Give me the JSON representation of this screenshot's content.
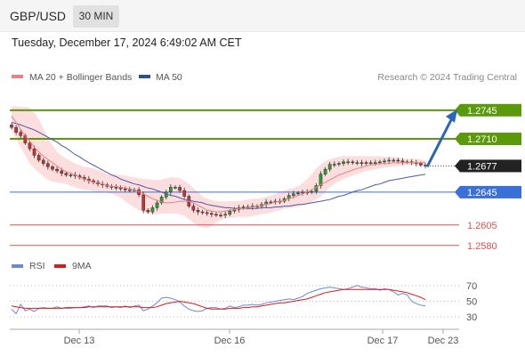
{
  "header": {
    "pair": "GBP/USD",
    "timeframe": "30 MIN"
  },
  "timestamp": "Tuesday, December 17, 2024 6:49:02 AM CET",
  "legend": [
    {
      "label": "MA 20 + Bollinger Bands",
      "color": "#f08080"
    },
    {
      "label": "MA 50",
      "color": "#2f4f8f"
    }
  ],
  "credit": "Research © 2024 Trading Central",
  "colors": {
    "resistance": "#5a9a0a",
    "pivot": "#3a70d8",
    "support": "#e05050",
    "current": "#222222",
    "candle_up": "#2f9e2f",
    "candle_down": "#c83232",
    "band_fill": "#fbd3d3",
    "ma20": "#f08080",
    "ma50": "#4a5aa8",
    "rsi": "#6a88dd",
    "rsi_ma": "#e01818",
    "arrow": "#2a66b8"
  },
  "chart_data": [
    {
      "type": "candlestick",
      "ylim": [
        1.257,
        1.276
      ],
      "x_ticks": [
        "Dec 13",
        "Dec 16",
        "Dec 17",
        "Dec 23"
      ],
      "levels": [
        {
          "value": 1.2745,
          "label": "1.2745",
          "kind": "resistance"
        },
        {
          "value": 1.271,
          "label": "1.2710",
          "kind": "resistance"
        },
        {
          "value": 1.2677,
          "label": "1.2677",
          "kind": "current"
        },
        {
          "value": 1.2645,
          "label": "1.2645",
          "kind": "pivot"
        },
        {
          "value": 1.2605,
          "label": "1.2605",
          "kind": "support"
        },
        {
          "value": 1.258,
          "label": "1.2580",
          "kind": "support"
        }
      ],
      "forecast_target": 1.2745,
      "price": [
        1.2724,
        1.2718,
        1.2714,
        1.2705,
        1.2698,
        1.269,
        1.2684,
        1.268,
        1.2676,
        1.2673,
        1.2671,
        1.2668,
        1.2666,
        1.2666,
        1.2665,
        1.2663,
        1.2661,
        1.2659,
        1.2657,
        1.2655,
        1.2654,
        1.2652,
        1.2651,
        1.2651,
        1.2649,
        1.2648,
        1.2648,
        1.2648,
        1.2642,
        1.2623,
        1.2621,
        1.2626,
        1.2632,
        1.2639,
        1.2645,
        1.2651,
        1.2651,
        1.2647,
        1.264,
        1.2628,
        1.2623,
        1.2621,
        1.262,
        1.2619,
        1.2618,
        1.2617,
        1.2617,
        1.2618,
        1.2622,
        1.2624,
        1.2626,
        1.2627,
        1.2627,
        1.2628,
        1.2628,
        1.263,
        1.2633,
        1.2633,
        1.2634,
        1.2634,
        1.2637,
        1.2641,
        1.2643,
        1.2644,
        1.2645,
        1.2645,
        1.2646,
        1.2653,
        1.2667,
        1.2673,
        1.2679,
        1.2679,
        1.268,
        1.2682,
        1.2682,
        1.2681,
        1.2681,
        1.268,
        1.2681,
        1.2681,
        1.2681,
        1.2682,
        1.2683,
        1.2684,
        1.2684,
        1.2683,
        1.2682,
        1.2682,
        1.2681,
        1.268,
        1.2678,
        1.2677
      ],
      "ma20": [
        1.2738,
        1.273,
        1.2722,
        1.2714,
        1.2707,
        1.27,
        1.2694,
        1.2689,
        1.2685,
        1.2681,
        1.2677,
        1.2673,
        1.267,
        1.2668,
        1.2666,
        1.2663,
        1.2661,
        1.2659,
        1.2657,
        1.2656,
        1.2655,
        1.2653,
        1.2652,
        1.2652,
        1.2651,
        1.265,
        1.2649,
        1.2648,
        1.2646,
        1.2643,
        1.264,
        1.2637,
        1.2635,
        1.2633,
        1.2632,
        1.2632,
        1.2633,
        1.2634,
        1.2634,
        1.2634,
        1.2632,
        1.2629,
        1.2626,
        1.2623,
        1.2622,
        1.2621,
        1.2621,
        1.2622,
        1.2623,
        1.2624,
        1.2625,
        1.2625,
        1.2626,
        1.2627,
        1.2628,
        1.2629,
        1.263,
        1.2631,
        1.2633,
        1.2634,
        1.2635,
        1.2637,
        1.2639,
        1.2641,
        1.2643,
        1.2645,
        1.2648,
        1.2651,
        1.2654,
        1.2657,
        1.266,
        1.2663,
        1.2666,
        1.2668,
        1.267,
        1.2672,
        1.2674,
        1.2675,
        1.2677,
        1.2678,
        1.2679,
        1.268,
        1.268,
        1.268,
        1.2681,
        1.2681,
        1.2681,
        1.2681,
        1.2681,
        1.2681,
        1.2681,
        1.2681
      ],
      "ma50": [
        1.273,
        1.2729,
        1.2727,
        1.2725,
        1.2723,
        1.2721,
        1.2718,
        1.2715,
        1.2712,
        1.2709,
        1.2706,
        1.2702,
        1.2699,
        1.2695,
        1.2691,
        1.2688,
        1.2684,
        1.2681,
        1.2678,
        1.2675,
        1.2672,
        1.2669,
        1.2666,
        1.2664,
        1.2661,
        1.2659,
        1.2657,
        1.2655,
        1.2654,
        1.2652,
        1.265,
        1.2649,
        1.2647,
        1.2645,
        1.2643,
        1.2641,
        1.264,
        1.2638,
        1.2636,
        1.2635,
        1.2634,
        1.2633,
        1.2632,
        1.263,
        1.2629,
        1.2628,
        1.2627,
        1.2626,
        1.2626,
        1.2625,
        1.2625,
        1.2625,
        1.2625,
        1.2625,
        1.2625,
        1.2626,
        1.2626,
        1.2626,
        1.2627,
        1.2627,
        1.2628,
        1.2628,
        1.2629,
        1.263,
        1.263,
        1.2631,
        1.2632,
        1.2633,
        1.2634,
        1.2635,
        1.2636,
        1.2638,
        1.264,
        1.2641,
        1.2643,
        1.2645,
        1.2647,
        1.2648,
        1.265,
        1.2652,
        1.2654,
        1.2655,
        1.2657,
        1.2659,
        1.266,
        1.2661,
        1.2662,
        1.2663,
        1.2664,
        1.2665,
        1.2666,
        1.2667
      ],
      "band_upper": [
        1.275,
        1.275,
        1.2749,
        1.2749,
        1.2748,
        1.2742,
        1.2734,
        1.2722,
        1.2712,
        1.2702,
        1.2694,
        1.269,
        1.2686,
        1.2683,
        1.268,
        1.2678,
        1.2676,
        1.2675,
        1.2674,
        1.2672,
        1.267,
        1.2667,
        1.2667,
        1.2667,
        1.2666,
        1.2665,
        1.2664,
        1.2663,
        1.2662,
        1.2661,
        1.2661,
        1.266,
        1.266,
        1.266,
        1.2662,
        1.2663,
        1.2663,
        1.2662,
        1.2659,
        1.2655,
        1.265,
        1.2645,
        1.264,
        1.2637,
        1.2635,
        1.2634,
        1.2634,
        1.2634,
        1.2634,
        1.2634,
        1.2634,
        1.2635,
        1.2636,
        1.2637,
        1.2637,
        1.2638,
        1.2639,
        1.2641,
        1.2643,
        1.2645,
        1.2647,
        1.2649,
        1.265,
        1.2652,
        1.2656,
        1.2661,
        1.2667,
        1.2674,
        1.2679,
        1.2683,
        1.2685,
        1.2687,
        1.2688,
        1.2689,
        1.2689,
        1.2689,
        1.2689,
        1.2689,
        1.2689,
        1.2689,
        1.2689,
        1.2689,
        1.2688,
        1.2688,
        1.2688,
        1.2687,
        1.2686,
        1.2686,
        1.2686,
        1.2685,
        1.2685,
        1.2684
      ],
      "band_lower": [
        1.272,
        1.271,
        1.27,
        1.269,
        1.268,
        1.2674,
        1.2669,
        1.2664,
        1.266,
        1.2658,
        1.2657,
        1.2656,
        1.2655,
        1.2653,
        1.2651,
        1.2649,
        1.2648,
        1.2647,
        1.2646,
        1.2645,
        1.2645,
        1.2644,
        1.2643,
        1.2641,
        1.2638,
        1.2634,
        1.263,
        1.2626,
        1.2623,
        1.2621,
        1.2619,
        1.2618,
        1.2618,
        1.2619,
        1.2619,
        1.2619,
        1.2619,
        1.2618,
        1.2616,
        1.2612,
        1.2608,
        1.2604,
        1.2602,
        1.2601,
        1.2604,
        1.2608,
        1.2611,
        1.2613,
        1.2614,
        1.2614,
        1.2615,
        1.2615,
        1.2615,
        1.2616,
        1.2617,
        1.2618,
        1.2619,
        1.262,
        1.2622,
        1.2623,
        1.2625,
        1.2625,
        1.2626,
        1.2627,
        1.2629,
        1.2631,
        1.2633,
        1.2636,
        1.264,
        1.2645,
        1.2651,
        1.2655,
        1.2658,
        1.2661,
        1.2663,
        1.2665,
        1.2667,
        1.2669,
        1.2671,
        1.2672,
        1.2673,
        1.2674,
        1.2675,
        1.2676,
        1.2676,
        1.2677,
        1.2677,
        1.2678,
        1.2678,
        1.2678,
        1.2678,
        1.2678
      ]
    },
    {
      "type": "line",
      "title": "RSI",
      "legend": [
        "RSI",
        "9MA"
      ],
      "ylim": [
        20,
        80
      ],
      "y_ticks": [
        70,
        50,
        30
      ],
      "rsi": [
        40,
        34,
        46,
        38,
        40,
        37,
        41,
        42,
        41,
        41,
        43,
        41,
        41,
        41,
        42,
        42,
        43,
        44,
        42,
        44,
        44,
        44,
        42,
        43,
        42,
        44,
        42,
        44,
        45,
        38,
        40,
        44,
        48,
        54,
        55,
        54,
        52,
        49,
        44,
        40,
        38,
        37,
        38,
        41,
        42,
        42,
        40,
        41,
        44,
        42,
        43,
        45,
        45,
        46,
        45,
        46,
        48,
        49,
        50,
        51,
        52,
        53,
        52,
        54,
        56,
        60,
        62,
        64,
        66,
        67,
        68,
        67,
        66,
        65,
        66,
        68,
        70,
        68,
        67,
        66,
        66,
        64,
        66,
        65,
        62,
        58,
        60,
        58,
        50,
        47,
        45,
        44
      ],
      "ma9": [
        44,
        43,
        42,
        41,
        41,
        41,
        41,
        41,
        41,
        41,
        41,
        41,
        42,
        42,
        42,
        42,
        42,
        43,
        43,
        43,
        43,
        43,
        43,
        43,
        43,
        43,
        43,
        43,
        43,
        42,
        42,
        42,
        43,
        45,
        47,
        48,
        49,
        50,
        49,
        48,
        47,
        45,
        43,
        41,
        40,
        40,
        40,
        40,
        41,
        41,
        41,
        42,
        42,
        43,
        43,
        44,
        45,
        46,
        47,
        48,
        48,
        49,
        50,
        51,
        52,
        53,
        55,
        57,
        59,
        61,
        62,
        63,
        64,
        65,
        65,
        65,
        65,
        65,
        65,
        65,
        65,
        65,
        65,
        65,
        64,
        63,
        62,
        61,
        59,
        57,
        55,
        52
      ]
    }
  ]
}
